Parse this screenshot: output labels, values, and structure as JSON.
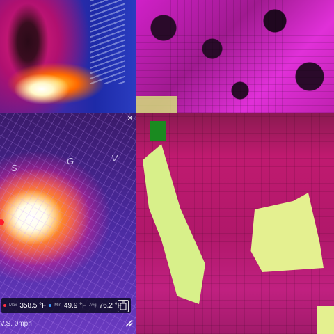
{
  "panels": {
    "top_left": {
      "label": "thermal-view-fire"
    },
    "top_right": {
      "label": "thermal-zoom-pixels"
    },
    "bottom_left": {
      "label": "thermal-camera-view"
    },
    "bottom_right": {
      "label": "thermal-zoom-hotspots"
    }
  },
  "overlay": {
    "close_glyph": "×",
    "letters": [
      "S",
      "G",
      "V"
    ],
    "stats": {
      "max_label": "Max",
      "max_value": "358.5 °F",
      "min_label": "Min",
      "min_value": "49.9 °F",
      "avg_label": "Avg",
      "avg_value": "76.2 °F"
    },
    "footer_text": "V.S. 0mph"
  },
  "icons": {
    "close": "close-icon",
    "capture": "capture-icon",
    "resize": "resize-icon"
  },
  "colors": {
    "max_marker": "#ff3040",
    "min_marker": "#40a0ff",
    "avg_marker": "#cccccc",
    "hotspot": "#ff1a2a"
  }
}
